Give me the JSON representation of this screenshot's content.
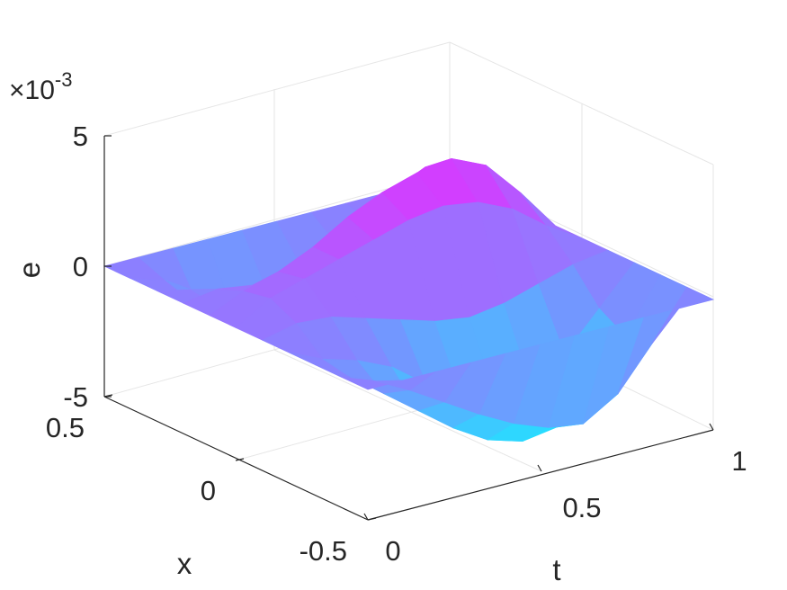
{
  "chart_data": {
    "type": "surface",
    "title": "",
    "xlabel": "t",
    "ylabel": "x",
    "zlabel": "e",
    "xlim": [
      0,
      1
    ],
    "ylim": [
      -0.5,
      0.5
    ],
    "zlim": [
      -0.005,
      0.005
    ],
    "z_exponent": {
      "base": "×10",
      "power": "-3"
    },
    "x_ticks": [
      "0",
      "0.5",
      "1"
    ],
    "y_ticks": [
      "-0.5",
      "0",
      "0.5"
    ],
    "z_ticks": [
      "-5",
      "0",
      "5"
    ],
    "grid": true,
    "colormap": {
      "low": "#1ee6ff",
      "high": "#ff14ff"
    },
    "surface": {
      "t": [
        0,
        0.1,
        0.2,
        0.3,
        0.4,
        0.5,
        0.6,
        0.7,
        0.8,
        0.9,
        1
      ],
      "x": [
        -0.5,
        -0.4,
        -0.3,
        -0.2,
        -0.1,
        0,
        0.1,
        0.2,
        0.3,
        0.4,
        0.5
      ],
      "e_x1e-3": [
        [
          0,
          0,
          0,
          0,
          0,
          0,
          0,
          0,
          0,
          0,
          0
        ],
        [
          0,
          -0.5,
          -0.8,
          -0.6,
          0.3,
          0.8,
          0.6,
          0.2,
          -0.3,
          -0.4,
          0
        ],
        [
          0,
          -1.2,
          -1.8,
          -1.0,
          0.2,
          1.2,
          1.0,
          0.0,
          -1.5,
          -1.8,
          0
        ],
        [
          0,
          -2.0,
          -2.8,
          -1.6,
          -0.2,
          1.6,
          1.6,
          0.0,
          -2.2,
          -2.5,
          0
        ],
        [
          0,
          -2.8,
          -3.8,
          -2.6,
          -0.6,
          2.0,
          2.4,
          0.6,
          -1.6,
          -2.0,
          0
        ],
        [
          0,
          -3.5,
          -4.6,
          -3.4,
          -1.0,
          2.4,
          3.0,
          1.4,
          -0.6,
          -1.4,
          0
        ],
        [
          0,
          -4.0,
          -5.0,
          -3.8,
          -1.2,
          2.6,
          3.4,
          2.2,
          0.4,
          -0.8,
          0
        ],
        [
          0,
          -4.2,
          -4.8,
          -3.6,
          -1.0,
          2.4,
          3.6,
          2.8,
          1.4,
          -0.2,
          0
        ],
        [
          0,
          -3.4,
          -3.8,
          -2.8,
          -0.6,
          1.8,
          3.0,
          2.6,
          1.6,
          0.2,
          0
        ],
        [
          0,
          -1.8,
          -2.0,
          -1.4,
          -0.2,
          0.8,
          1.6,
          1.4,
          0.8,
          0.2,
          0
        ],
        [
          0,
          0,
          0,
          0,
          0,
          0,
          0,
          0,
          0,
          0,
          0
        ]
      ]
    }
  }
}
